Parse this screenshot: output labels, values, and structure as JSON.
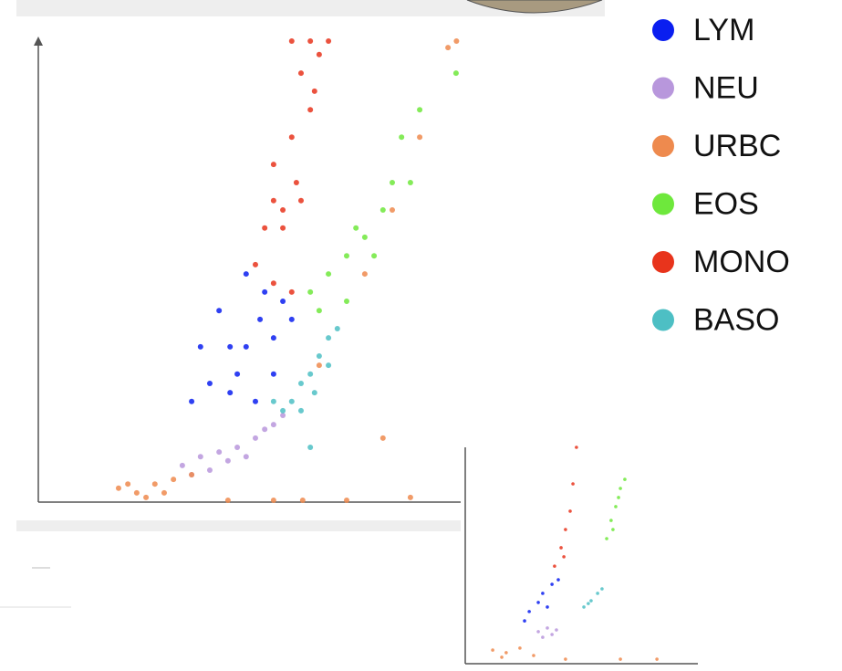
{
  "chart_data": [
    {
      "type": "scatter",
      "xlim": [
        0,
        100
      ],
      "ylim": [
        0,
        100
      ],
      "legend": "right",
      "series": [
        {
          "name": "LYM",
          "color": "#0a1ef0",
          "x": [
            49.2,
            53.6,
            57.9,
            45.4,
            49.2,
            55.7,
            60.0,
            40.6,
            45.4,
            51.4,
            36.3,
            47.1,
            55.7,
            38.4,
            52.5,
            42.8
          ],
          "values": [
            49.2,
            45.3,
            43.3,
            33.5,
            33.5,
            35.4,
            39.4,
            25.6,
            23.6,
            21.7,
            21.7,
            27.6,
            27.6,
            33.5,
            39.4,
            41.3
          ]
        },
        {
          "name": "NEU",
          "color": "#b897dc",
          "x": [
            34.1,
            38.4,
            42.8,
            47.1,
            51.4,
            55.7,
            40.6,
            44.9,
            49.2,
            36.3,
            53.6,
            57.9
          ],
          "values": [
            7.9,
            9.8,
            10.8,
            11.8,
            13.8,
            16.7,
            6.9,
            8.9,
            9.8,
            5.9,
            15.7,
            18.7
          ]
        },
        {
          "name": "URBC",
          "color": "#ee8a4e",
          "x": [
            19.0,
            23.3,
            27.6,
            32.0,
            25.5,
            21.2,
            36.3,
            29.8,
            55.7,
            73.0,
            88.1,
            66.5,
            77.3,
            83.8,
            90.3,
            99.0,
            97.0,
            81.6,
            62.6,
            44.9
          ],
          "values": [
            3.0,
            2.0,
            3.9,
            4.9,
            1.0,
            3.9,
            5.9,
            2.0,
            0.4,
            0.4,
            1.0,
            29.5,
            49.2,
            63.0,
            78.7,
            99.4,
            98.0,
            13.8,
            0.4,
            0.4
          ]
        },
        {
          "name": "EOS",
          "color": "#6ee83c",
          "x": [
            64.4,
            68.7,
            73.0,
            77.3,
            81.6,
            83.8,
            86.0,
            90.3,
            98.9,
            73.0,
            79.5,
            66.5,
            88.1,
            75.2
          ],
          "values": [
            45.3,
            49.2,
            53.1,
            57.1,
            63.0,
            68.9,
            78.7,
            84.6,
            92.5,
            43.3,
            53.1,
            41.3,
            68.9,
            59.1
          ]
        },
        {
          "name": "MONO",
          "color": "#e8341c",
          "x": [
            51.4,
            55.7,
            60.0,
            53.6,
            57.9,
            62.2,
            55.7,
            60.0,
            64.4,
            62.2,
            66.5,
            64.4,
            68.7,
            57.9,
            55.7,
            61.1,
            65.4,
            60.0
          ],
          "values": [
            51.2,
            47.2,
            45.3,
            59.1,
            63.0,
            65.0,
            72.8,
            78.7,
            84.6,
            92.5,
            96.5,
            99.4,
            99.4,
            59.1,
            65.0,
            68.9,
            88.6,
            99.4
          ]
        },
        {
          "name": "BASO",
          "color": "#4dbfc4",
          "x": [
            57.9,
            60.0,
            62.2,
            64.4,
            66.5,
            68.7,
            70.8,
            62.2,
            65.4,
            55.7,
            68.7,
            64.4
          ],
          "values": [
            19.7,
            21.7,
            25.6,
            27.6,
            31.5,
            35.4,
            37.4,
            19.7,
            23.6,
            21.7,
            29.5,
            11.8
          ]
        }
      ]
    },
    {
      "type": "scatter",
      "xlim": [
        0,
        100
      ],
      "ylim": [
        0,
        100
      ],
      "series": [
        {
          "color": "#0a1ef0",
          "x": [
            27.5,
            33.3,
            37.3,
            31.4,
            25.5,
            35.3,
            40.0
          ],
          "values": [
            24.1,
            32.5,
            36.7,
            28.3,
            19.8,
            26.2,
            38.8
          ]
        },
        {
          "color": "#b897dc",
          "x": [
            31.4,
            35.3,
            39.2,
            33.3,
            37.3
          ],
          "values": [
            14.8,
            16.5,
            15.6,
            12.2,
            13.5
          ]
        },
        {
          "color": "#ee8a4e",
          "x": [
            11.8,
            17.6,
            23.5,
            29.4,
            15.7,
            43.1,
            66.7,
            82.4
          ],
          "values": [
            6.3,
            5.1,
            7.2,
            3.8,
            3.0,
            2.1,
            2.1,
            2.1
          ]
        },
        {
          "color": "#6ee83c",
          "x": [
            60.8,
            62.7,
            64.7,
            66.7,
            68.6,
            63.5,
            65.9
          ],
          "values": [
            57.8,
            66.2,
            72.6,
            81.0,
            85.2,
            62.0,
            76.8
          ]
        },
        {
          "color": "#e8341c",
          "x": [
            38.4,
            41.2,
            43.1,
            45.1,
            46.3,
            47.8,
            42.4
          ],
          "values": [
            45.1,
            53.6,
            62.0,
            70.5,
            83.1,
            100.0,
            49.4
          ]
        },
        {
          "color": "#4dbfc4",
          "x": [
            51.0,
            54.1,
            56.9,
            58.8,
            52.9
          ],
          "values": [
            26.2,
            29.1,
            32.5,
            34.6,
            27.8
          ]
        }
      ]
    }
  ]
}
